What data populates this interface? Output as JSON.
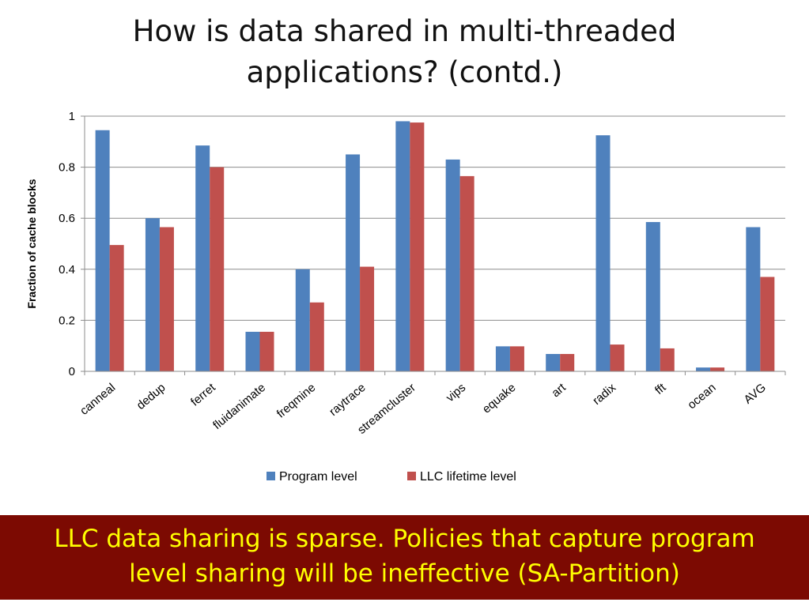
{
  "slide": {
    "title_line1": "How is data shared in multi-threaded",
    "title_line2": "applications? (contd.)",
    "takeaway_line1": "LLC data sharing is sparse. Policies that capture program",
    "takeaway_line2": "level sharing will be ineffective (SA-Partition)"
  },
  "colors": {
    "program": "#4f81bd",
    "llc": "#c0504d",
    "banner": "#7c0a02",
    "banner_text": "#ffff00"
  },
  "chart_data": {
    "type": "bar",
    "title": "",
    "xlabel": "",
    "ylabel": "Fraction of cache blocks",
    "ylim": [
      0,
      1
    ],
    "yticks": [
      "0",
      "0.2",
      "0.4",
      "0.6",
      "0.8",
      "1"
    ],
    "grid": true,
    "legend_position": "bottom",
    "categories": [
      "canneal",
      "dedup",
      "ferret",
      "fluidanimate",
      "freqmine",
      "raytrace",
      "streamcluster",
      "vips",
      "equake",
      "art",
      "radix",
      "fft",
      "ocean",
      "AVG"
    ],
    "series": [
      {
        "name": "Program level",
        "values": [
          0.945,
          0.6,
          0.885,
          0.155,
          0.4,
          0.85,
          0.98,
          0.83,
          0.098,
          0.068,
          0.925,
          0.585,
          0.015,
          0.565
        ]
      },
      {
        "name": "LLC lifetime level",
        "values": [
          0.495,
          0.565,
          0.8,
          0.155,
          0.27,
          0.41,
          0.975,
          0.765,
          0.098,
          0.068,
          0.105,
          0.09,
          0.015,
          0.37
        ]
      }
    ]
  }
}
